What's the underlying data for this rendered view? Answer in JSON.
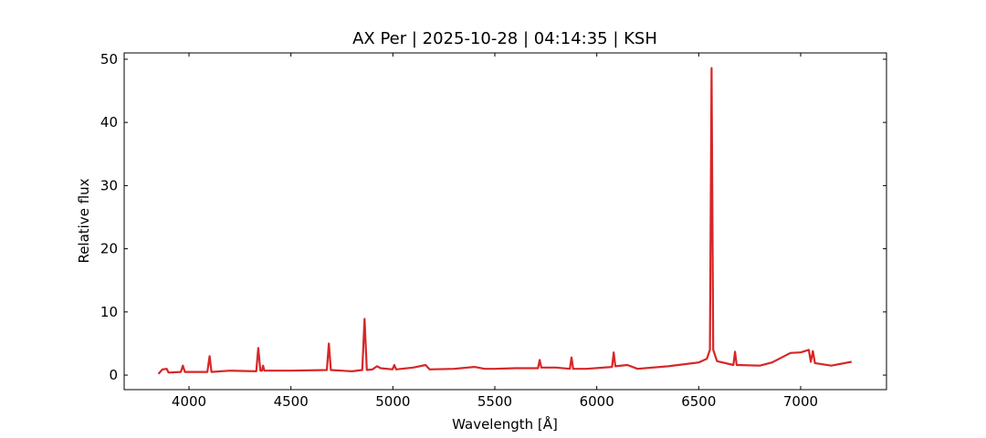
{
  "chart_data": {
    "type": "line",
    "title": "AX Per | 2025-10-28 | 04:14:35 | KSH",
    "x_label": "Wavelength [Å]",
    "y_label": "Relative flux",
    "x": [
      3850,
      3870,
      3890,
      3900,
      3960,
      3970,
      3980,
      4090,
      4101,
      4110,
      4200,
      4330,
      4340,
      4350,
      4358,
      4363,
      4370,
      4500,
      4676,
      4686,
      4696,
      4800,
      4850,
      4861,
      4872,
      4900,
      4922,
      4940,
      4998,
      5007,
      5016,
      5100,
      5160,
      5180,
      5300,
      5400,
      5450,
      5500,
      5600,
      5712,
      5720,
      5728,
      5800,
      5868,
      5876,
      5884,
      5950,
      6075,
      6083,
      6091,
      6150,
      6200,
      6350,
      6500,
      6540,
      6555,
      6563,
      6571,
      6590,
      6670,
      6678,
      6686,
      6800,
      6860,
      6950,
      7000,
      7040,
      7050,
      7060,
      7070,
      7150,
      7250
    ],
    "series": [
      {
        "color": "#d62728",
        "values": [
          0.2,
          0.9,
          1.0,
          0.4,
          0.5,
          1.5,
          0.5,
          0.5,
          3.0,
          0.5,
          0.7,
          0.6,
          4.3,
          0.7,
          0.7,
          1.5,
          0.7,
          0.7,
          0.8,
          5.0,
          0.8,
          0.6,
          0.8,
          8.9,
          0.8,
          0.9,
          1.4,
          1.1,
          0.9,
          1.6,
          0.9,
          1.2,
          1.6,
          0.9,
          1.0,
          1.3,
          1.0,
          1.0,
          1.1,
          1.1,
          2.4,
          1.2,
          1.2,
          1.0,
          2.8,
          1.0,
          1.0,
          1.3,
          3.6,
          1.4,
          1.6,
          1.0,
          1.4,
          2.0,
          2.6,
          4.0,
          48.6,
          4.0,
          2.2,
          1.6,
          3.7,
          1.6,
          1.5,
          2.0,
          3.5,
          3.6,
          4.0,
          2.1,
          3.8,
          1.9,
          1.5,
          2.1
        ]
      }
    ],
    "xlim": [
      3682,
      7421
    ],
    "ylim": [
      -2.3,
      51
    ],
    "xticks": [
      4000,
      4500,
      5000,
      5500,
      6000,
      6500,
      7000
    ],
    "yticks": [
      0,
      10,
      20,
      30,
      40,
      50
    ]
  }
}
